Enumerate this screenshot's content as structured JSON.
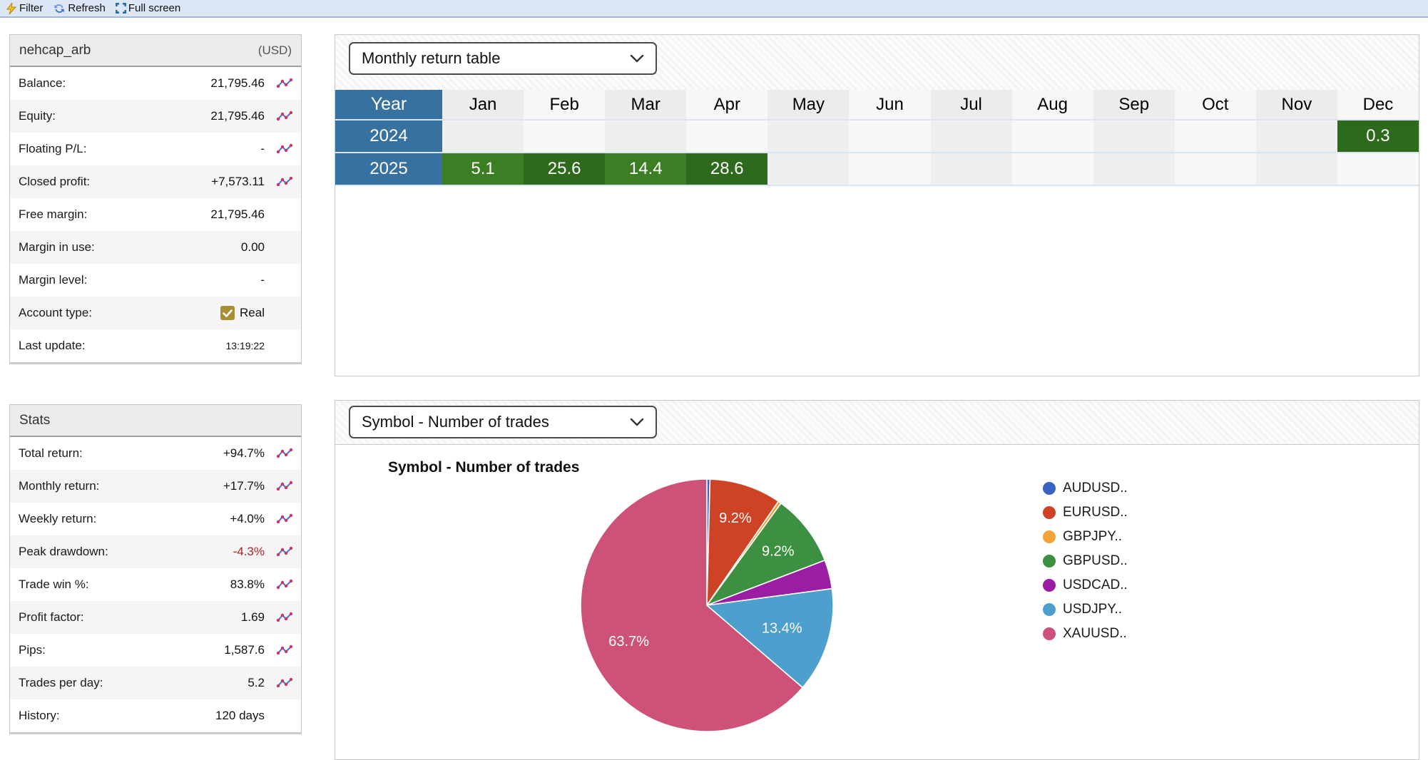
{
  "toolbar": {
    "buttons": [
      {
        "label": "Filter",
        "icon": "lightning-icon"
      },
      {
        "label": "Refresh",
        "icon": "refresh-icon"
      },
      {
        "label": "Full screen",
        "icon": "fullscreen-icon"
      }
    ]
  },
  "account": {
    "title": "nehcap_arb",
    "currency_label": "(USD)",
    "rows": [
      {
        "label": "Balance:",
        "value": "21,795.46",
        "chart_icon": true
      },
      {
        "label": "Equity:",
        "value": "21,795.46",
        "chart_icon": true
      },
      {
        "label": "Floating P/L:",
        "value": "-",
        "chart_icon": true
      },
      {
        "label": "Closed profit:",
        "value": "+7,573.11",
        "chart_icon": true
      },
      {
        "label": "Free margin:",
        "value": "21,795.46",
        "chart_icon": false
      },
      {
        "label": "Margin in use:",
        "value": "0.00",
        "chart_icon": false
      },
      {
        "label": "Margin level:",
        "value": "-",
        "chart_icon": false
      },
      {
        "label": "Account type:",
        "value": "Real",
        "chart_icon": false,
        "checkbox": true
      },
      {
        "label": "Last update:",
        "value": "13:19:22",
        "chart_icon": false,
        "small": true
      }
    ]
  },
  "stats": {
    "title": "Stats",
    "rows": [
      {
        "label": "Total return:",
        "value": "+94.7%",
        "chart_icon": true
      },
      {
        "label": "Monthly return:",
        "value": "+17.7%",
        "chart_icon": true
      },
      {
        "label": "Weekly return:",
        "value": "+4.0%",
        "chart_icon": true
      },
      {
        "label": "Peak drawdown:",
        "value": "-4.3%",
        "chart_icon": true,
        "negative": true
      },
      {
        "label": "Trade win %:",
        "value": "83.8%",
        "chart_icon": true
      },
      {
        "label": "Profit factor:",
        "value": "1.69",
        "chart_icon": true
      },
      {
        "label": "Pips:",
        "value": "1,587.6",
        "chart_icon": true
      },
      {
        "label": "Trades per day:",
        "value": "5.2",
        "chart_icon": true
      },
      {
        "label": "History:",
        "value": "120 days",
        "chart_icon": false
      }
    ]
  },
  "monthly_panel": {
    "dropdown_value": "Monthly return table"
  },
  "pie_panel": {
    "dropdown_value": "Symbol - Number of trades"
  },
  "chart_data": [
    {
      "type": "table",
      "title": "Monthly return table",
      "columns": [
        "Year",
        "Jan",
        "Feb",
        "Mar",
        "Apr",
        "May",
        "Jun",
        "Jul",
        "Aug",
        "Sep",
        "Oct",
        "Nov",
        "Dec"
      ],
      "rows": [
        {
          "year": "2024",
          "values": [
            null,
            null,
            null,
            null,
            null,
            null,
            null,
            null,
            null,
            null,
            null,
            0.3
          ]
        },
        {
          "year": "2025",
          "values": [
            5.1,
            25.6,
            14.4,
            28.6,
            null,
            null,
            null,
            null,
            null,
            null,
            null,
            null
          ]
        }
      ],
      "colors": {
        "year_col_bg": "#36719F",
        "header_cell_odd": "#ECECEC",
        "header_cell_even": "#F7F7F7",
        "empty_cell_odd": "#EFEFEF",
        "empty_cell_even": "#F8F8F8",
        "positive_odd": "#3C7E24",
        "positive_even": "#2E6A1B"
      }
    },
    {
      "type": "pie",
      "title": "Symbol - Number of trades",
      "legend_position": "right",
      "series": [
        {
          "name": "AUDUSD..",
          "pct": 0.4,
          "color": "#3B62C3",
          "label": ""
        },
        {
          "name": "EURUSD..",
          "pct": 9.2,
          "color": "#CE4326",
          "label": "9.2%"
        },
        {
          "name": "GBPJPY..",
          "pct": 0.4,
          "color": "#F2A33C",
          "label": ""
        },
        {
          "name": "GBPUSD..",
          "pct": 9.2,
          "color": "#3D8F41",
          "label": "9.2%"
        },
        {
          "name": "USDCAD..",
          "pct": 3.7,
          "color": "#9A1DA3",
          "label": ""
        },
        {
          "name": "USDJPY..",
          "pct": 13.4,
          "color": "#4D9FCE",
          "label": "13.4%"
        },
        {
          "name": "XAUUSD..",
          "pct": 63.7,
          "color": "#CE5277",
          "label": "63.7%"
        }
      ]
    }
  ],
  "colors": {
    "toolbar_bg": "#DCE6F5",
    "negative_red": "#B22222",
    "checkbox_gold": "#AB8D33"
  }
}
